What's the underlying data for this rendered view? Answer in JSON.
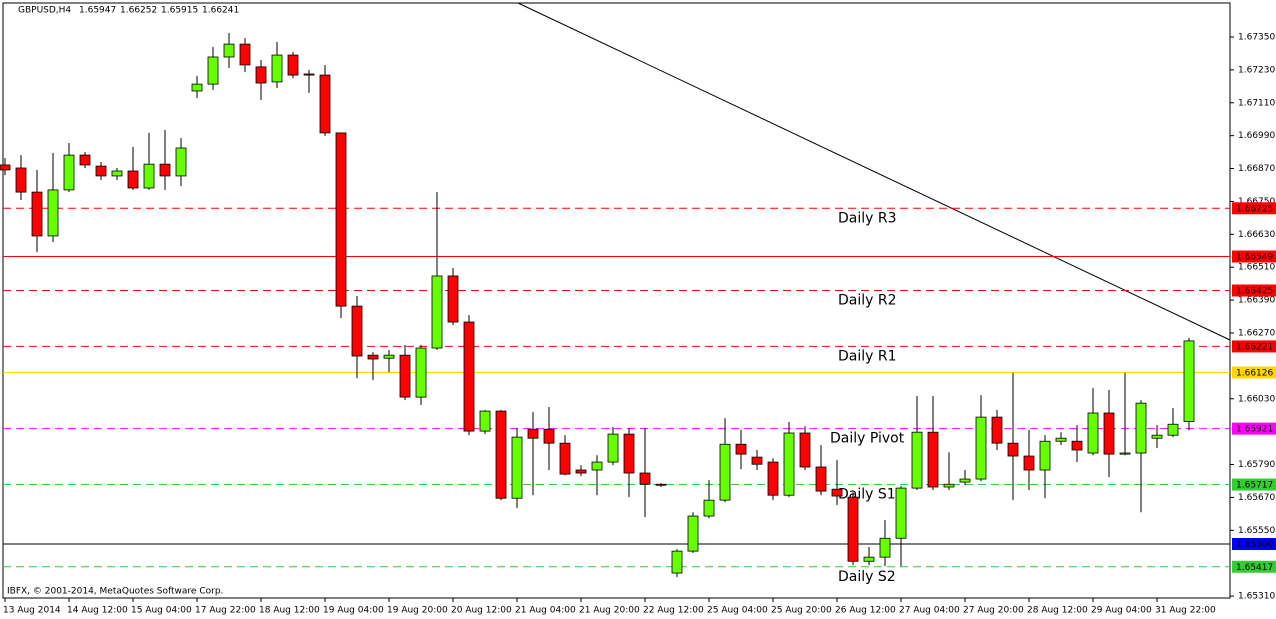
{
  "chart_data": {
    "type": "candlestick",
    "title": "GBPUSD,H4",
    "copyright": "IBFX, © 2001-2014, MetaQuotes Software Corp.",
    "up_color": "#66ff00",
    "down_color": "#ff0000",
    "categories": [
      "13 Aug 2014",
      null,
      null,
      null,
      "14 Aug 12:00",
      null,
      null,
      null,
      "15 Aug 04:00",
      null,
      null,
      null,
      "17 Aug 22:00",
      null,
      null,
      null,
      "18 Aug 12:00",
      null,
      null,
      null,
      "19 Aug 04:00",
      null,
      null,
      null,
      "19 Aug 20:00",
      null,
      null,
      null,
      "20 Aug 12:00",
      null,
      null,
      null,
      "21 Aug 04:00",
      null,
      null,
      null,
      "21 Aug 20:00",
      null,
      null,
      null,
      "22 Aug 12:00",
      null,
      null,
      null,
      "25 Aug 04:00",
      null,
      null,
      null,
      "25 Aug 20:00",
      null,
      null,
      null,
      "26 Aug 12:00",
      null,
      null,
      null,
      "27 Aug 04:00",
      null,
      null,
      null,
      "27 Aug 20:00",
      null,
      null,
      null,
      "28 Aug 12:00",
      null,
      null,
      null,
      "29 Aug 04:00",
      null,
      null,
      null,
      "31 Aug 22:00",
      null,
      null
    ],
    "open": [
      1.66883,
      1.66872,
      1.66784,
      1.66624,
      1.66792,
      1.66919,
      1.66879,
      1.66843,
      1.66861,
      1.66799,
      1.66886,
      1.66843,
      1.67153,
      1.67178,
      1.67277,
      1.67324,
      1.67241,
      1.67186,
      1.67284,
      1.67215,
      1.67211,
      1.67,
      1.66368,
      1.66189,
      1.66178,
      1.66189,
      1.66036,
      1.66215,
      1.66478,
      1.6631,
      1.65912,
      1.65985,
      1.65667,
      1.65919,
      1.65919,
      1.65868,
      1.6577,
      1.6577,
      1.65799,
      1.65901,
      1.65759,
      1.65718,
      1.65394,
      1.65474,
      1.65602,
      1.6566,
      1.65864,
      1.65817,
      1.65799,
      1.65678,
      1.65905,
      1.65781,
      1.657,
      1.65671,
      1.65437,
      1.65452,
      1.65521,
      1.65704,
      1.65908,
      1.65708,
      1.65726,
      1.65737,
      1.65963,
      1.65868,
      1.65821,
      1.6577,
      1.65875,
      1.65875,
      1.65832,
      1.65978,
      1.65828,
      1.65832,
      1.65886,
      1.65897,
      1.65947
    ],
    "high": [
      1.66908,
      1.66919,
      1.66865,
      1.66927,
      1.66963,
      1.6693,
      1.66894,
      1.66872,
      1.66949,
      1.67,
      1.67011,
      1.66981,
      1.67208,
      1.67314,
      1.67365,
      1.67346,
      1.67266,
      1.67332,
      1.67295,
      1.6723,
      1.67248,
      1.67,
      1.66405,
      1.662,
      1.66208,
      1.66226,
      1.66226,
      1.66784,
      1.66507,
      1.66335,
      1.65989,
      1.65989,
      1.65923,
      1.65981,
      1.66,
      1.65897,
      1.65788,
      1.65824,
      1.65927,
      1.65923,
      1.65923,
      1.65722,
      1.65481,
      1.65616,
      1.65733,
      1.65959,
      1.65916,
      1.65843,
      1.65813,
      1.65945,
      1.6593,
      1.65861,
      1.65806,
      1.65689,
      1.65489,
      1.65587,
      1.65711,
      1.6604,
      1.6604,
      1.65835,
      1.6577,
      1.66043,
      1.65989,
      1.66124,
      1.65916,
      1.65897,
      1.65908,
      1.65934,
      1.66069,
      1.66062,
      1.66124,
      1.66025,
      1.65934,
      1.65996,
      1.66252
    ],
    "low": [
      1.66846,
      1.66755,
      1.66565,
      1.66602,
      1.66784,
      1.66872,
      1.66828,
      1.66828,
      1.66792,
      1.66792,
      1.66792,
      1.66806,
      1.67127,
      1.67157,
      1.67237,
      1.67222,
      1.6712,
      1.67164,
      1.672,
      1.67146,
      1.66989,
      1.66324,
      1.66105,
      1.66098,
      1.66127,
      1.66025,
      1.66007,
      1.66208,
      1.66299,
      1.65897,
      1.65901,
      1.6566,
      1.65631,
      1.65678,
      1.6577,
      1.65751,
      1.65748,
      1.65678,
      1.65788,
      1.65671,
      1.65598,
      1.65708,
      1.65379,
      1.65467,
      1.65594,
      1.65653,
      1.65773,
      1.6577,
      1.6566,
      1.65671,
      1.6577,
      1.65678,
      1.65642,
      1.65423,
      1.65423,
      1.65419,
      1.65419,
      1.65697,
      1.65697,
      1.65697,
      1.65715,
      1.65729,
      1.65843,
      1.6566,
      1.65697,
      1.65667,
      1.65861,
      1.65799,
      1.65824,
      1.65744,
      1.65824,
      1.65616,
      1.6585,
      1.6589,
      1.65915
    ],
    "close": [
      1.66865,
      1.66784,
      1.66624,
      1.66792,
      1.66919,
      1.66883,
      1.66843,
      1.66861,
      1.66799,
      1.66886,
      1.66843,
      1.66945,
      1.67178,
      1.67277,
      1.67324,
      1.67248,
      1.67182,
      1.67284,
      1.67211,
      1.67211,
      1.67,
      1.66368,
      1.66186,
      1.66175,
      1.66189,
      1.66036,
      1.66215,
      1.66478,
      1.6631,
      1.65912,
      1.65985,
      1.65667,
      1.6589,
      1.65886,
      1.65868,
      1.65755,
      1.65759,
      1.65799,
      1.65901,
      1.65759,
      1.65718,
      1.65715,
      1.65474,
      1.65602,
      1.6566,
      1.65864,
      1.65828,
      1.65791,
      1.65678,
      1.65905,
      1.65781,
      1.65693,
      1.65675,
      1.65437,
      1.65452,
      1.65521,
      1.65704,
      1.65908,
      1.65708,
      1.65718,
      1.65737,
      1.65963,
      1.65868,
      1.65821,
      1.6577,
      1.65875,
      1.65886,
      1.65843,
      1.65978,
      1.65828,
      1.65832,
      1.66014,
      1.65897,
      1.65937,
      1.66241
    ],
    "ylim": [
      1.65303,
      1.67474
    ],
    "yticks": [
      {
        "value": 1.6735,
        "label": "1.67350"
      },
      {
        "value": 1.6723,
        "label": "1.67230"
      },
      {
        "value": 1.6711,
        "label": "1.67110"
      },
      {
        "value": 1.6699,
        "label": "1.66990"
      },
      {
        "value": 1.6687,
        "label": "1.66870"
      },
      {
        "value": 1.6675,
        "label": "1.66750"
      },
      {
        "value": 1.6663,
        "label": "1.66630"
      },
      {
        "value": 1.6651,
        "label": "1.66510"
      },
      {
        "value": 1.6639,
        "label": "1.66390"
      },
      {
        "value": 1.6627,
        "label": "1.66270"
      },
      {
        "value": 1.6603,
        "label": "1.66030"
      },
      {
        "value": 1.6579,
        "label": "1.65790"
      },
      {
        "value": 1.6567,
        "label": "1.65670"
      },
      {
        "value": 1.6555,
        "label": "1.65550"
      },
      {
        "value": 1.6531,
        "label": "1.65310"
      }
    ],
    "levels": [
      {
        "price": 1.66725,
        "color": "#ff0000",
        "dashed": true,
        "name": "Daily R3",
        "name_color": "#e02020",
        "box": "#ff0000",
        "box_text": "#ffffff"
      },
      {
        "price": 1.66549,
        "color": "#ff0000",
        "dashed": false,
        "box": "#ff0000",
        "box_text": "#ffffff"
      },
      {
        "price": 1.66425,
        "color": "#ff0000",
        "dashed": true,
        "name": "Daily R2",
        "name_color": "#e02020",
        "box": "#ff0000",
        "box_text": "#ffffff"
      },
      {
        "price": 1.66221,
        "color": "#ff0000",
        "dashed": true,
        "name": "Daily R1",
        "name_color": "#e02020",
        "box": "#ff0000",
        "box_text": "#ffffff"
      },
      {
        "price": 1.66126,
        "color": "#ffd700",
        "dashed": false,
        "box": "#ffd700",
        "box_text": "#000000"
      },
      {
        "price": 1.65921,
        "color": "#ff00ff",
        "dashed": true,
        "name": "Daily Pivot",
        "name_color": "#ff00ff",
        "box": "#ff00ff",
        "box_text": "#ffffff"
      },
      {
        "price": 1.65717,
        "color": "#32cd32",
        "dashed": true,
        "name": "Daily S1",
        "name_color": "#1a1a8c",
        "box": "#32cd32",
        "box_text": "#ffffff"
      },
      {
        "price": {
          "value": 1.655,
          "label": "1.65500"
        },
        "color": "#000000",
        "dashed": false,
        "box": "#0000ff",
        "box_text": "#ffffff"
      },
      {
        "price": 1.65417,
        "color": "#32cd32",
        "dashed": true,
        "name": "Daily S2",
        "name_color": "#1a1a8c",
        "box": "#32cd32",
        "box_text": "#ffffff"
      }
    ]
  }
}
